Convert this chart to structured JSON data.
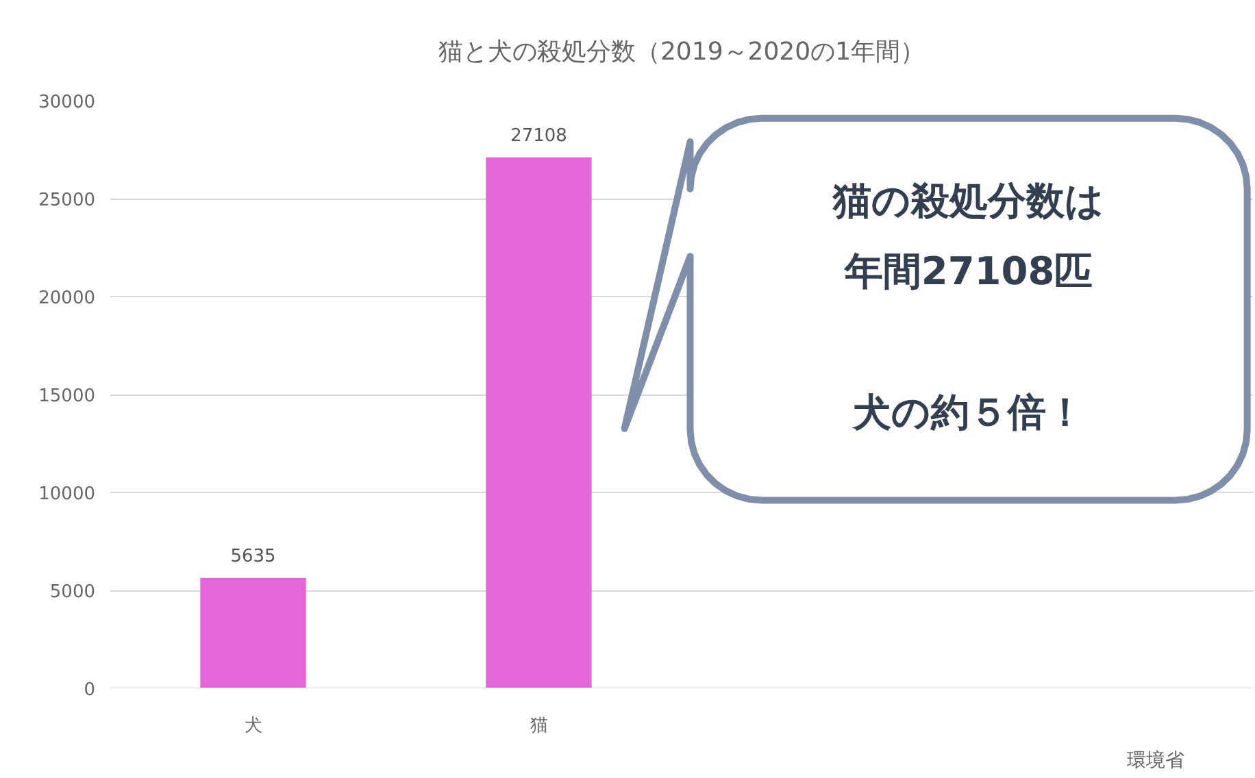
{
  "chart_data": {
    "type": "bar",
    "title": "猫と犬の殺処分数（2019～2020の1年間）",
    "categories": [
      "犬",
      "猫",
      null,
      null
    ],
    "values": [
      5635,
      27108,
      null,
      null
    ],
    "color": "#e566d9",
    "ylim": [
      0,
      30000
    ],
    "yticks": [
      0,
      5000,
      10000,
      15000,
      20000,
      25000,
      30000
    ],
    "grid": "y",
    "data_labels": true,
    "annotations": [
      "猫の殺処分数は",
      "年間27108匹",
      "犬の約５倍！",
      "環境省"
    ]
  }
}
